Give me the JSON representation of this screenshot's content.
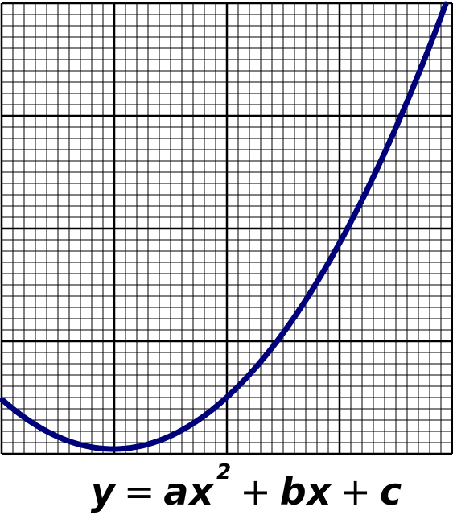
{
  "diagram": {
    "curve_color": "#00007a",
    "grid_color": "#000000",
    "equation": {
      "lhs": "y",
      "equals": "=",
      "term1_coeff": "ax",
      "term1_exp": "2",
      "plus1": "+",
      "term2": "bx",
      "plus2": "+",
      "term3": "c"
    }
  }
}
